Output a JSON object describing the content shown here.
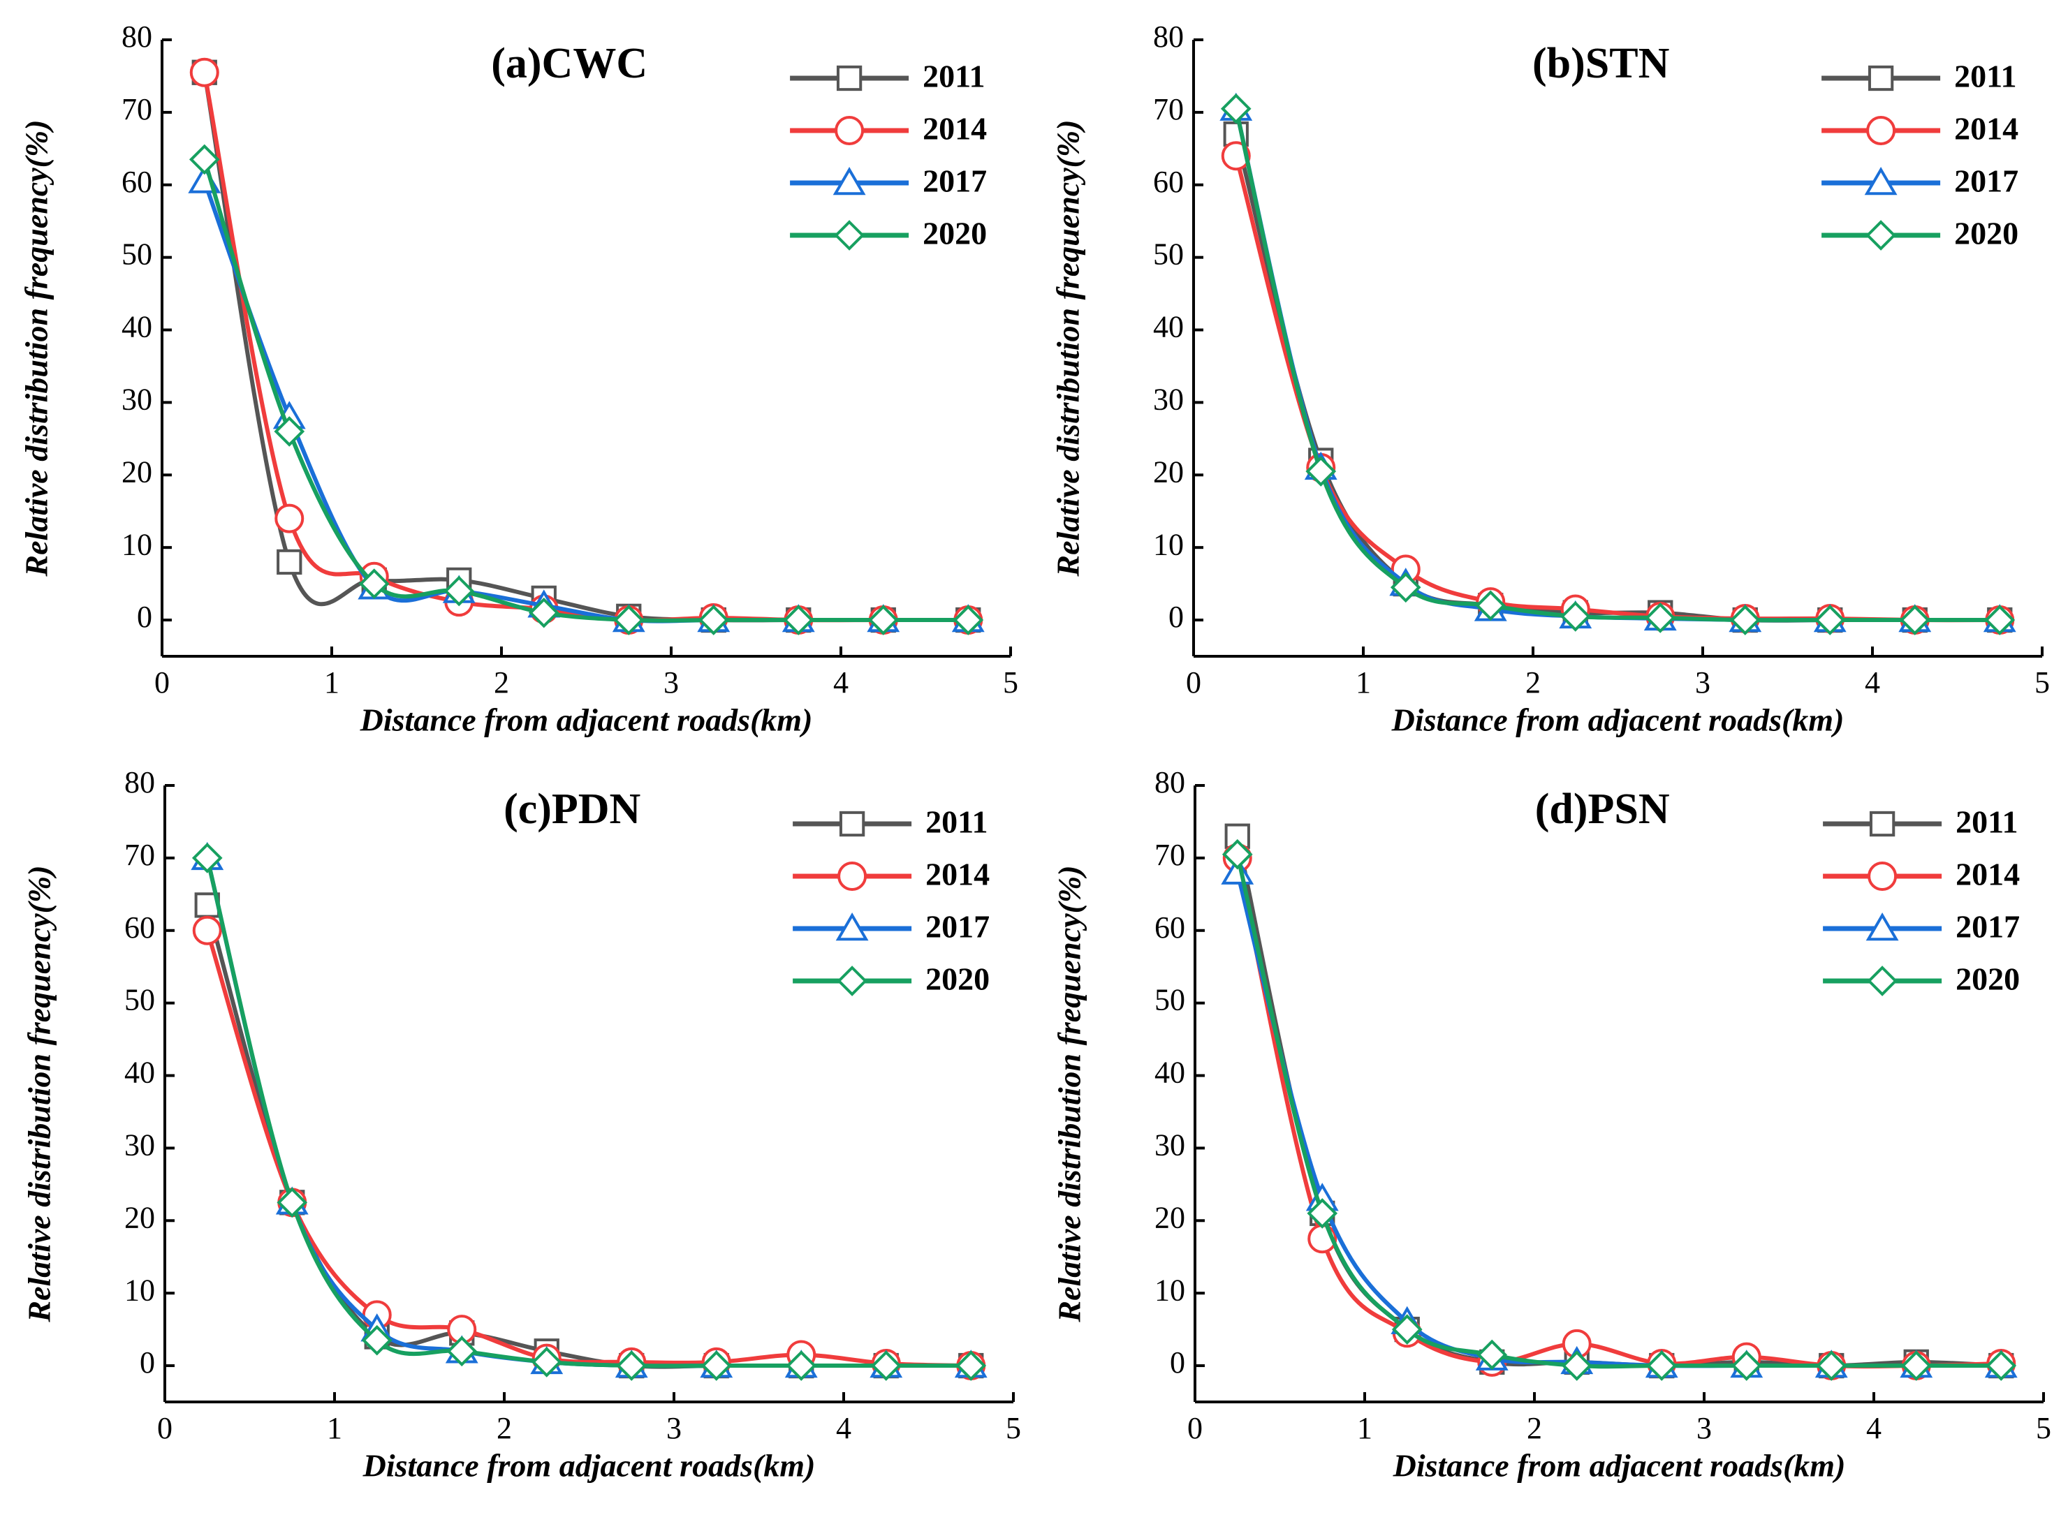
{
  "chart_data": [
    {
      "type": "line",
      "title": "(a)CWC",
      "x_label": "Distance from adjacent roads(km)",
      "y_label": "Relative distribution frequency(%)",
      "x": [
        0.25,
        0.75,
        1.25,
        1.75,
        2.25,
        2.75,
        3.25,
        3.75,
        4.25,
        4.75
      ],
      "xlim": [
        0,
        5
      ],
      "xticks": [
        0,
        1,
        2,
        3,
        4,
        5
      ],
      "ylim": [
        -5,
        80
      ],
      "yticks": [
        0,
        10,
        20,
        30,
        40,
        50,
        60,
        70,
        80
      ],
      "legend": "upper right",
      "series": [
        {
          "name": "2011",
          "color": "#555555",
          "marker": "square",
          "values": [
            75.5,
            8,
            5.5,
            5.5,
            3,
            0.5,
            0,
            0,
            0,
            0
          ]
        },
        {
          "name": "2014",
          "color": "#f03c3c",
          "marker": "circle",
          "values": [
            75.5,
            14,
            6,
            2.5,
            1.5,
            0,
            0.3,
            0,
            0,
            0
          ]
        },
        {
          "name": "2017",
          "color": "#1a6fd8",
          "marker": "triangle",
          "values": [
            60.5,
            28,
            4.5,
            4,
            2,
            0,
            0,
            0,
            0,
            0
          ]
        },
        {
          "name": "2020",
          "color": "#17a060",
          "marker": "diamond",
          "values": [
            63.5,
            26,
            5,
            4,
            1,
            0,
            0,
            0,
            0,
            0
          ]
        }
      ]
    },
    {
      "type": "line",
      "title": "(b)STN",
      "x_label": "Distance from adjacent roads(km)",
      "y_label": "Relative distribution frequency(%)",
      "x": [
        0.25,
        0.75,
        1.25,
        1.75,
        2.25,
        2.75,
        3.25,
        3.75,
        4.25,
        4.75
      ],
      "xlim": [
        0,
        5
      ],
      "xticks": [
        0,
        1,
        2,
        3,
        4,
        5
      ],
      "ylim": [
        -5,
        80
      ],
      "yticks": [
        0,
        10,
        20,
        30,
        40,
        50,
        60,
        70,
        80
      ],
      "legend": "upper right",
      "series": [
        {
          "name": "2011",
          "color": "#555555",
          "marker": "square",
          "values": [
            67,
            22,
            5,
            2,
            1,
            1,
            0,
            0,
            0,
            0
          ]
        },
        {
          "name": "2014",
          "color": "#f03c3c",
          "marker": "circle",
          "values": [
            64,
            21,
            7,
            2.5,
            1.5,
            0.5,
            0.2,
            0.2,
            0,
            0
          ]
        },
        {
          "name": "2017",
          "color": "#1a6fd8",
          "marker": "triangle",
          "values": [
            70.5,
            21,
            5,
            1.5,
            0.5,
            0.2,
            0,
            0,
            0,
            0
          ]
        },
        {
          "name": "2020",
          "color": "#17a060",
          "marker": "diamond",
          "values": [
            70.5,
            20.5,
            4.5,
            2,
            0.5,
            0.3,
            0,
            0,
            0,
            0
          ]
        }
      ]
    },
    {
      "type": "line",
      "title": "(c)PDN",
      "x_label": "Distance from adjacent roads(km)",
      "y_label": "Relative distribution frequency(%)",
      "x": [
        0.25,
        0.75,
        1.25,
        1.75,
        2.25,
        2.75,
        3.25,
        3.75,
        4.25,
        4.75
      ],
      "xlim": [
        0,
        5
      ],
      "xticks": [
        0,
        1,
        2,
        3,
        4,
        5
      ],
      "ylim": [
        -5,
        80
      ],
      "yticks": [
        0,
        10,
        20,
        30,
        40,
        50,
        60,
        70,
        80
      ],
      "legend": "upper right",
      "series": [
        {
          "name": "2011",
          "color": "#555555",
          "marker": "square",
          "values": [
            63.5,
            22.5,
            4,
            4.5,
            2,
            0,
            0,
            0,
            0,
            0
          ]
        },
        {
          "name": "2014",
          "color": "#f03c3c",
          "marker": "circle",
          "values": [
            60,
            22.5,
            7,
            5,
            1,
            0.5,
            0.5,
            1.5,
            0.3,
            0
          ]
        },
        {
          "name": "2017",
          "color": "#1a6fd8",
          "marker": "triangle",
          "values": [
            70,
            22.5,
            5,
            2,
            0.5,
            0,
            0,
            0,
            0,
            0
          ]
        },
        {
          "name": "2020",
          "color": "#17a060",
          "marker": "diamond",
          "values": [
            70,
            22.5,
            3.5,
            2,
            0.5,
            0,
            0,
            0,
            0,
            0
          ]
        }
      ]
    },
    {
      "type": "line",
      "title": "(d)PSN",
      "x_label": "Distance from adjacent roads(km)",
      "y_label": "Relative distribution frequency(%)",
      "x": [
        0.25,
        0.75,
        1.25,
        1.75,
        2.25,
        2.75,
        3.25,
        3.75,
        4.25,
        4.75
      ],
      "xlim": [
        0,
        5
      ],
      "xticks": [
        0,
        1,
        2,
        3,
        4,
        5
      ],
      "ylim": [
        -5,
        80
      ],
      "yticks": [
        0,
        10,
        20,
        30,
        40,
        50,
        60,
        70,
        80
      ],
      "legend": "upper right",
      "series": [
        {
          "name": "2011",
          "color": "#555555",
          "marker": "square",
          "values": [
            73,
            21,
            5,
            0.5,
            0.5,
            0,
            0.5,
            0,
            0.5,
            0
          ]
        },
        {
          "name": "2014",
          "color": "#f03c3c",
          "marker": "circle",
          "values": [
            70,
            17.5,
            4.5,
            0.5,
            3,
            0.3,
            1.2,
            0,
            0,
            0.3
          ]
        },
        {
          "name": "2017",
          "color": "#1a6fd8",
          "marker": "triangle",
          "values": [
            68,
            23,
            6,
            1,
            0.5,
            0,
            0,
            0,
            0,
            0
          ]
        },
        {
          "name": "2020",
          "color": "#17a060",
          "marker": "diamond",
          "values": [
            70.5,
            21,
            5,
            1.5,
            0,
            0,
            0,
            0,
            0,
            0
          ]
        }
      ]
    }
  ]
}
